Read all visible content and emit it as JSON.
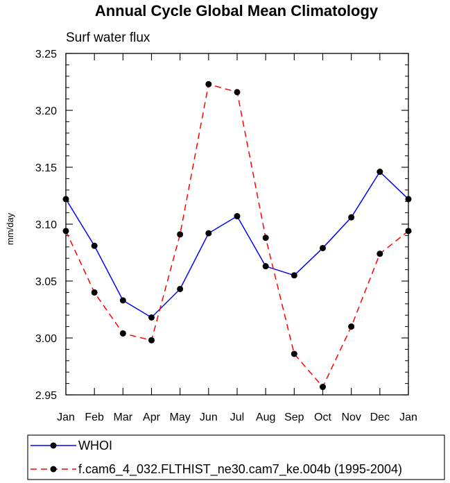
{
  "chart_data": {
    "type": "line",
    "title": "Annual Cycle Global Mean Climatology",
    "subtitle": "Surf water flux",
    "xlabel": "",
    "ylabel": "mm/day",
    "categories": [
      "Jan",
      "Feb",
      "Mar",
      "Apr",
      "May",
      "Jun",
      "Jul",
      "Aug",
      "Sep",
      "Oct",
      "Nov",
      "Dec",
      "Jan"
    ],
    "ylim": [
      2.95,
      3.25
    ],
    "yticks": [
      "2.95",
      "3.00",
      "3.05",
      "3.10",
      "3.15",
      "3.20",
      "3.25"
    ],
    "grid": false,
    "legend_position": "bottom",
    "series": [
      {
        "name": "WHOI",
        "color": "#0000ff",
        "dash": "solid",
        "values": [
          3.122,
          3.081,
          3.033,
          3.018,
          3.043,
          3.092,
          3.107,
          3.063,
          3.055,
          3.079,
          3.106,
          3.146,
          3.122
        ]
      },
      {
        "name": "f.cam6_4_032.FLTHIST_ne30.cam7_ke.004b (1995-2004)",
        "color": "#ff0000",
        "dash": "dashed",
        "values": [
          3.094,
          3.04,
          3.004,
          2.998,
          3.091,
          3.223,
          3.216,
          3.088,
          2.986,
          2.957,
          3.01,
          3.074,
          3.094
        ]
      }
    ]
  }
}
